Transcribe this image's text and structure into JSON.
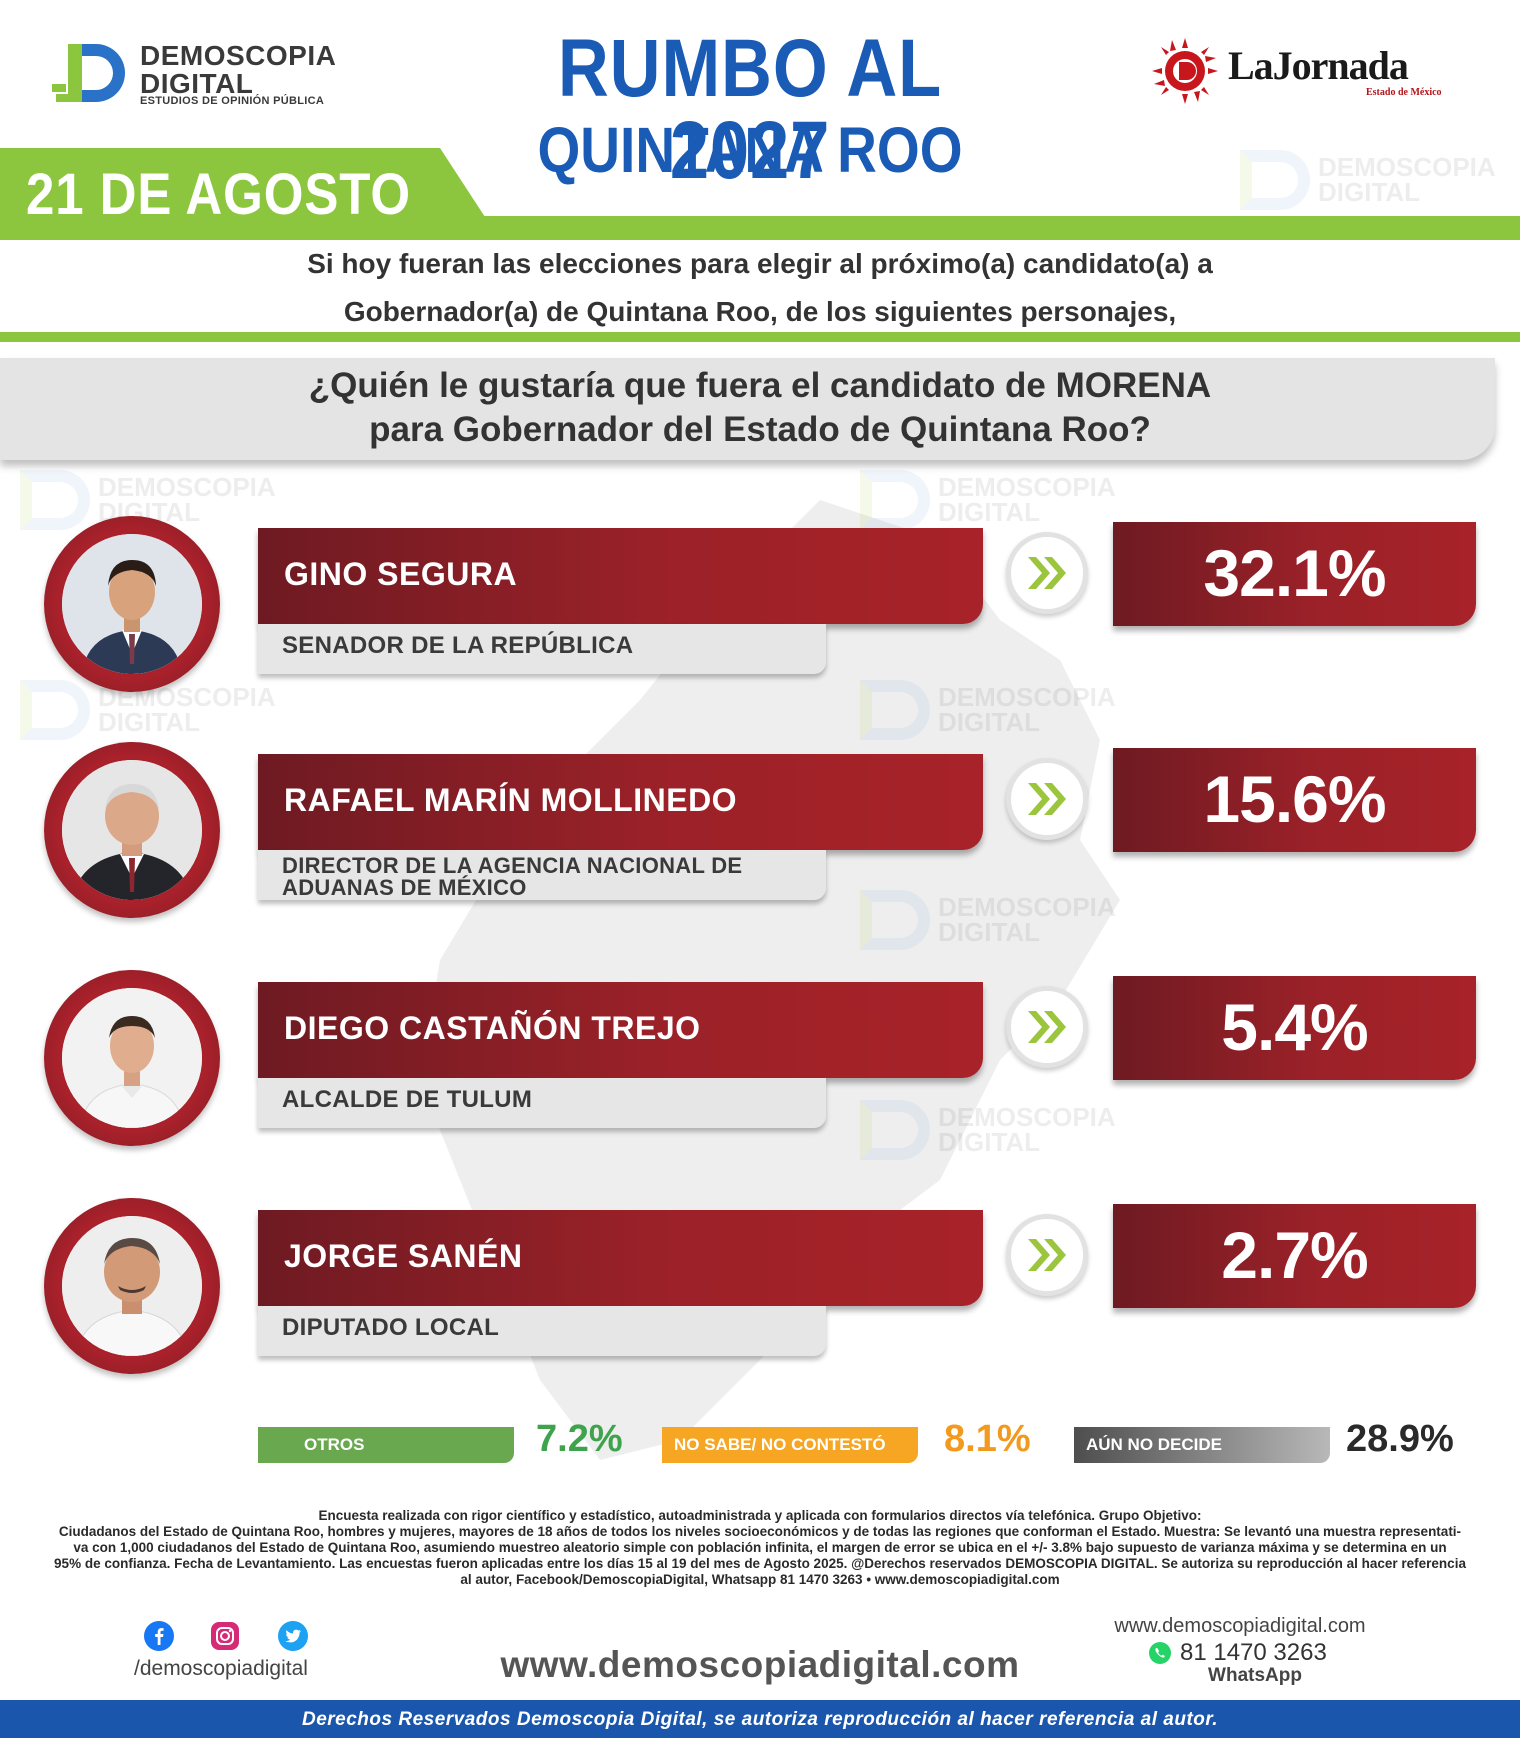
{
  "header": {
    "left_logo": {
      "line1": "DEMOSCOPIA",
      "line2": "DIGITAL",
      "tagline": "ESTUDIOS DE OPINIÓN PÚBLICA"
    },
    "title": "RUMBO AL 2027",
    "subtitle": "QUINTANA ROO",
    "right_logo": {
      "name": "LaJornada",
      "sub": "Estado de México"
    },
    "date": "21 DE AGOSTO"
  },
  "intro": {
    "line1": "Si hoy fueran las elecciones para elegir al próximo(a) candidato(a) a",
    "line2": "Gobernador(a) de Quintana Roo, de los siguientes personajes,"
  },
  "question": {
    "line1": "¿Quién le gustaría que fuera el candidato de MORENA",
    "line2": "para Gobernador del Estado de Quintana Roo?"
  },
  "candidates": [
    {
      "name": "GINO SEGURA",
      "role_line1": "SENADOR DE LA REPÚBLICA",
      "role_line2": "",
      "percent": "32.1%",
      "value": 32.1
    },
    {
      "name": "RAFAEL MARÍN MOLLINEDO",
      "role_line1": "DIRECTOR DE LA AGENCIA NACIONAL DE",
      "role_line2": "ADUANAS DE MÉXICO",
      "percent": "15.6%",
      "value": 15.6
    },
    {
      "name": "DIEGO CASTAÑÓN TREJO",
      "role_line1": "ALCALDE DE TULUM",
      "role_line2": "",
      "percent": "5.4%",
      "value": 5.4
    },
    {
      "name": "JORGE SANÉN",
      "role_line1": "DIPUTADO LOCAL",
      "role_line2": "",
      "percent": "2.7%",
      "value": 2.7
    }
  ],
  "others": [
    {
      "label": "OTROS",
      "percent": "7.2%",
      "color": "#6aa84f"
    },
    {
      "label": "NO SABE/ NO CONTESTÓ",
      "percent": "8.1%",
      "color": "#f6a623"
    },
    {
      "label": "AÚN NO DECIDE",
      "percent": "28.9%",
      "color": "#5a5a5a"
    }
  ],
  "footnote": {
    "line1": "Encuesta realizada con rigor científico y estadístico, autoadministrada y aplicada con formularios directos vía telefónica. Grupo Objetivo:",
    "line2": "Ciudadanos del Estado de Quintana Roo, hombres y mujeres, mayores de 18 años de todos los niveles socioeconómicos y de todas las regiones que conforman el Estado. Muestra: Se levantó una muestra representati-",
    "line3": "va con 1,000 ciudadanos del Estado de Quintana Roo, asumiendo muestreo aleatorio simple con población infinita, el margen de error se ubica en el +/- 3.8% bajo supuesto de varianza máxima y se determina en un",
    "line4": "95% de confianza. Fecha de Levantamiento. Las encuestas fueron aplicadas entre los días 15 al 19 del mes de Agosto 2025. @Derechos reservados DEMOSCOPIA DIGITAL. Se autoriza su reproducción al hacer referencia",
    "line5": "al autor, Facebook/DemoscopiaDigital, Whatsapp 81 1470 3263 • www.demoscopiadigital.com"
  },
  "footer": {
    "social_handle": "/demoscopiadigital",
    "website_center": "www.demoscopiadigital.com",
    "website_right": "www.demoscopiadigital.com",
    "whatsapp_number": "81 1470 3263",
    "whatsapp_label": "WhatsApp",
    "rights": "Derechos Reservados Demoscopia Digital, se autoriza reproducción al hacer referencia al autor."
  },
  "colors": {
    "title_blue": "#1a5bb5",
    "accent_green": "#8cc63f",
    "bar_red": "#9b2128",
    "band_blue": "#1b56ad"
  },
  "icons": [
    "facebook-icon",
    "instagram-icon",
    "twitter-icon",
    "whatsapp-icon",
    "double-chevron-right-icon"
  ]
}
